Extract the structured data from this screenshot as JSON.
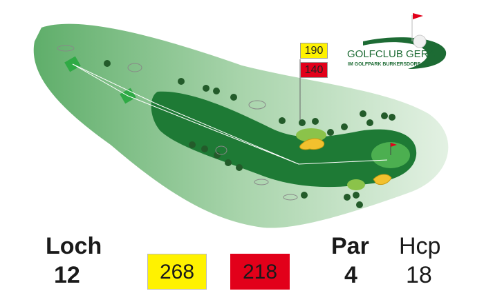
{
  "hole": {
    "label": "Loch",
    "number": "12"
  },
  "par": {
    "label": "Par",
    "value": "4"
  },
  "hcp": {
    "label": "Hcp",
    "value": "18"
  },
  "distances": {
    "yellow": "268",
    "red": "218"
  },
  "markers": {
    "yellow": "190",
    "red": "140"
  },
  "logo": {
    "name": "GOLFCLUB GERA",
    "subtitle": "IM GOLFPARK BURKERSDORF"
  },
  "colors": {
    "yellow": "#fff200",
    "red": "#e2001a",
    "rough": "#b9dcb9",
    "fairway": "#1e7a35",
    "green": "#4caf50",
    "bunker": "#f2c12e",
    "logo": "#1d6b34"
  }
}
